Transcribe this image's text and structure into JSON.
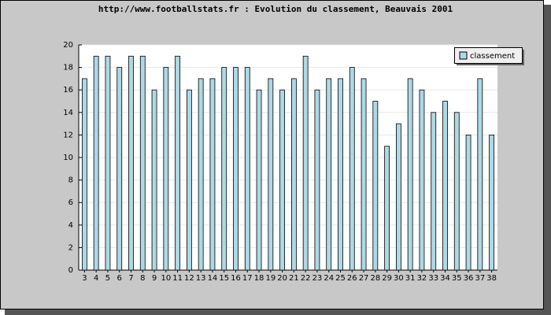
{
  "chart_data": {
    "type": "bar",
    "title": "http://www.footballstats.fr : Evolution du classement, Beauvais 2001",
    "categories": [
      "3",
      "4",
      "5",
      "6",
      "7",
      "8",
      "9",
      "10",
      "11",
      "12",
      "13",
      "14",
      "15",
      "16",
      "17",
      "18",
      "19",
      "20",
      "21",
      "22",
      "23",
      "24",
      "25",
      "26",
      "27",
      "28",
      "29",
      "30",
      "31",
      "32",
      "33",
      "34",
      "35",
      "36",
      "37",
      "38"
    ],
    "series": [
      {
        "name": "classement",
        "color": "#add8e6",
        "values": [
          17,
          19,
          19,
          18,
          19,
          19,
          16,
          18,
          19,
          16,
          17,
          17,
          18,
          18,
          18,
          16,
          17,
          16,
          17,
          19,
          16,
          17,
          17,
          18,
          17,
          15,
          11,
          13,
          17,
          16,
          14,
          15,
          14,
          12,
          17,
          12
        ]
      }
    ],
    "ylim": [
      0,
      20
    ],
    "yticks": [
      0,
      2,
      4,
      6,
      8,
      10,
      12,
      14,
      16,
      18,
      20
    ],
    "grid": true,
    "legend": "top-right"
  }
}
